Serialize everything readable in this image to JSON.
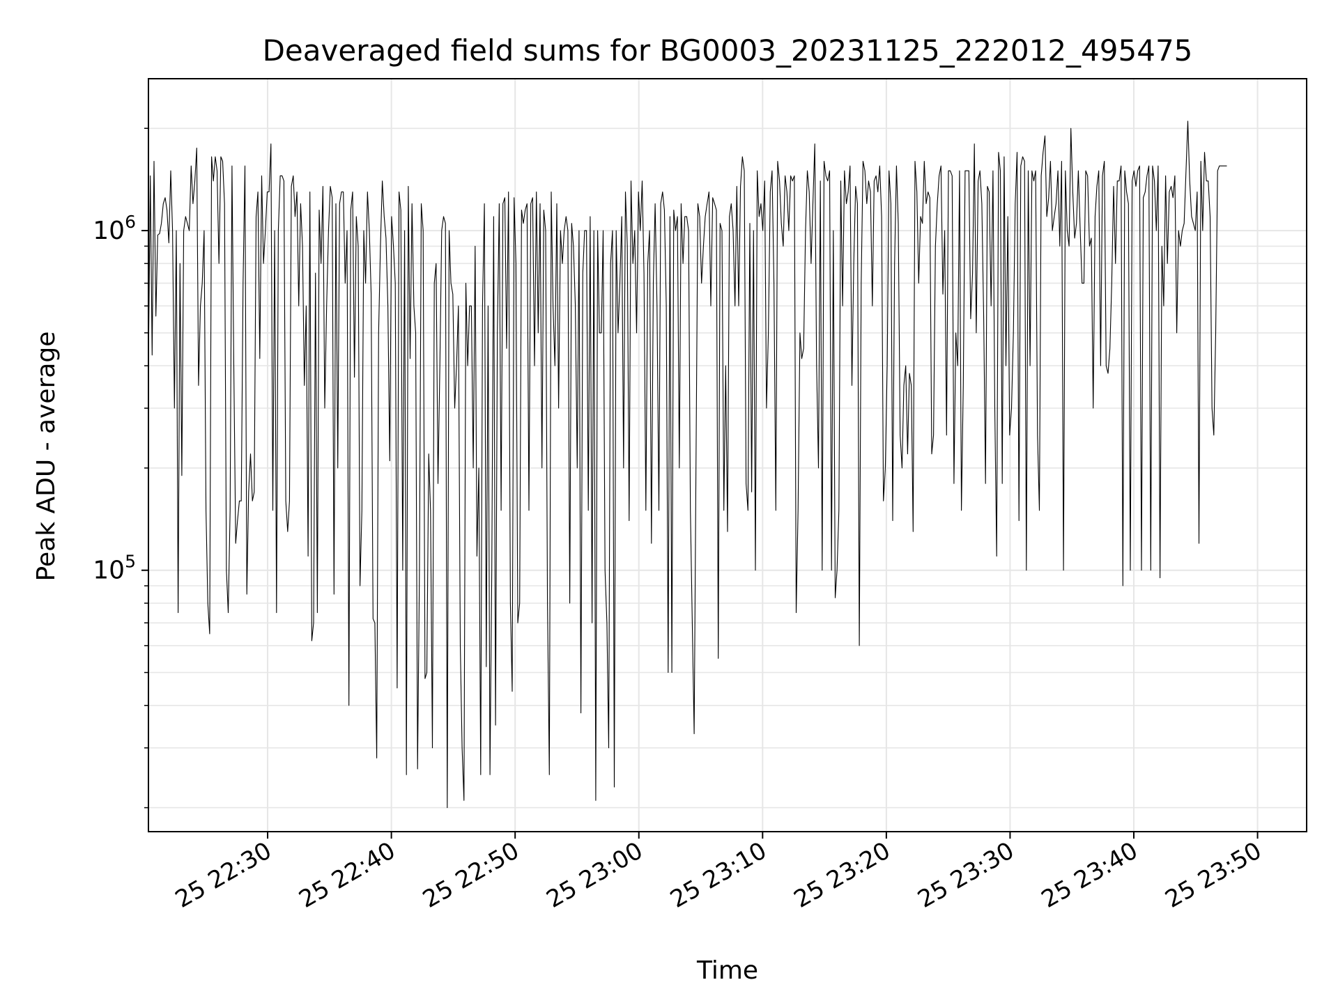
{
  "chart_data": {
    "type": "line",
    "title": "Deaveraged field sums for BG0003_20231125_222012_495475",
    "xlabel": "Time",
    "ylabel": "Peak ADU - average",
    "yscale": "log",
    "ylim": [
      17000,
      2800000
    ],
    "xlim": [
      "2023-11-25 22:20:22",
      "2023-11-25 23:53:58"
    ],
    "grid": true,
    "x_ticks": [
      "25 22:30",
      "25 22:40",
      "25 22:50",
      "25 23:00",
      "25 23:10",
      "25 23:20",
      "25 23:30",
      "25 23:40",
      "25 23:50"
    ],
    "y_ticks": [
      {
        "base": "10",
        "exp": "5",
        "value": 100000
      },
      {
        "base": "10",
        "exp": "6",
        "value": 1000000
      }
    ],
    "line_color": "#000000",
    "series": [
      {
        "x_start": "2023-11-25 22:20:22",
        "x_step_seconds": 9,
        "values": [
          400000,
          1450000,
          430000,
          1600000,
          560000,
          970000,
          980000,
          1050000,
          1200000,
          1250000,
          1150000,
          920000,
          1500000,
          1000000,
          300000,
          1000000,
          75000,
          800000,
          190000,
          1000000,
          1100000,
          1050000,
          1000000,
          1550000,
          1200000,
          1400000,
          1750000,
          350000,
          600000,
          700000,
          1000000,
          150000,
          80000,
          65000,
          1650000,
          1400000,
          1650000,
          1500000,
          800000,
          1650000,
          1600000,
          1200000,
          100000,
          75000,
          150000,
          1550000,
          400000,
          120000,
          140000,
          160000,
          160000,
          700000,
          1550000,
          85000,
          170000,
          220000,
          160000,
          170000,
          1100000,
          1300000,
          420000,
          1450000,
          800000,
          1000000,
          1300000,
          1300000,
          1800000,
          150000,
          1000000,
          75000,
          1000000,
          1450000,
          1450000,
          1400000,
          160000,
          130000,
          160000,
          1350000,
          1450000,
          1100000,
          1300000,
          600000,
          1200000,
          900000,
          350000,
          600000,
          110000,
          1300000,
          62000,
          70000,
          750000,
          75000,
          1150000,
          800000,
          1350000,
          300000,
          600000,
          1000000,
          1350000,
          1250000,
          85000,
          1200000,
          200000,
          1200000,
          1300000,
          1300000,
          700000,
          1000000,
          40000,
          1150000,
          1300000,
          370000,
          1100000,
          900000,
          90000,
          150000,
          1000000,
          700000,
          1300000,
          1000000,
          650000,
          72000,
          70000,
          28000,
          500000,
          900000,
          1400000,
          1100000,
          950000,
          600000,
          210000,
          1100000,
          900000,
          700000,
          45000,
          1300000,
          1150000,
          100000,
          1000000,
          25000,
          1350000,
          420000,
          1200000,
          600000,
          500000,
          26000,
          100000,
          1200000,
          1000000,
          48000,
          50000,
          220000,
          150000,
          30000,
          700000,
          800000,
          180000,
          400000,
          1000000,
          1100000,
          1050000,
          20000,
          1000000,
          700000,
          650000,
          300000,
          400000,
          600000,
          60000,
          30000,
          21000,
          700000,
          400000,
          600000,
          600000,
          200000,
          900000,
          110000,
          200000,
          25000,
          600000,
          1200000,
          52000,
          600000,
          25000,
          100000,
          1100000,
          35000,
          500000,
          1200000,
          150000,
          1200000,
          1250000,
          450000,
          1300000,
          80000,
          44000,
          1250000,
          800000,
          70000,
          80000,
          1150000,
          1050000,
          1150000,
          1200000,
          150000,
          1200000,
          1250000,
          400000,
          1300000,
          500000,
          1200000,
          200000,
          1150000,
          1000000,
          80000,
          25000,
          1300000,
          600000,
          400000,
          1200000,
          300000,
          1000000,
          800000,
          1000000,
          1100000,
          1000000,
          80000,
          1050000,
          900000,
          600000,
          200000,
          1000000,
          38000,
          750000,
          1000000,
          1000000,
          150000,
          1100000,
          70000,
          1000000,
          21000,
          1000000,
          500000,
          500000,
          1000000,
          100000,
          70000,
          30000,
          800000,
          1000000,
          23000,
          1000000,
          500000,
          700000,
          1100000,
          200000,
          1300000,
          900000,
          140000,
          1400000,
          800000,
          1000000,
          500000,
          1300000,
          1000000,
          1400000,
          750000,
          150000,
          800000,
          1000000,
          120000,
          700000,
          1200000,
          600000,
          150000,
          1200000,
          1300000,
          1150000,
          600000,
          50000,
          1100000,
          50000,
          1150000,
          1000000,
          1100000,
          200000,
          1200000,
          800000,
          1100000,
          1100000,
          1000000,
          150000,
          70000,
          33000,
          200000,
          1200000,
          1100000,
          700000,
          900000,
          1100000,
          1200000,
          1300000,
          600000,
          1250000,
          1200000,
          1150000,
          55000,
          1050000,
          1000000,
          150000,
          400000,
          130000,
          1100000,
          1200000,
          1000000,
          600000,
          1350000,
          600000,
          1350000,
          1650000,
          1500000,
          180000,
          150000,
          1050000,
          170000,
          1000000,
          100000,
          1500000,
          1100000,
          1200000,
          1000000,
          1400000,
          300000,
          500000,
          1300000,
          1500000,
          700000,
          150000,
          1600000,
          1400000,
          1050000,
          900000,
          1450000,
          1300000,
          1000000,
          1450000,
          1400000,
          1450000,
          75000,
          150000,
          500000,
          420000,
          450000,
          1000000,
          1500000,
          1300000,
          800000,
          1200000,
          1800000,
          400000,
          200000,
          1400000,
          100000,
          1600000,
          1450000,
          1400000,
          1500000,
          100000,
          1000000,
          83000,
          100000,
          150000,
          1400000,
          600000,
          1500000,
          1200000,
          1300000,
          1550000,
          350000,
          800000,
          1350000,
          1200000,
          60000,
          700000,
          1600000,
          1500000,
          1200000,
          1400000,
          1300000,
          600000,
          1400000,
          1450000,
          1300000,
          1550000,
          1100000,
          160000,
          200000,
          400000,
          1500000,
          1200000,
          140000,
          800000,
          1550000,
          1050000,
          250000,
          200000,
          350000,
          400000,
          220000,
          380000,
          350000,
          130000,
          1600000,
          1300000,
          700000,
          1100000,
          1050000,
          1600000,
          1200000,
          1300000,
          1250000,
          220000,
          250000,
          900000,
          1200000,
          1450000,
          1550000,
          650000,
          1000000,
          250000,
          1500000,
          1500000,
          1450000,
          180000,
          500000,
          400000,
          1500000,
          150000,
          350000,
          1500000,
          1500000,
          1500000,
          550000,
          750000,
          1800000,
          500000,
          1400000,
          1500000,
          1200000,
          550000,
          180000,
          1350000,
          1300000,
          600000,
          1500000,
          300000,
          110000,
          1700000,
          1500000,
          180000,
          1650000,
          400000,
          1100000,
          250000,
          300000,
          500000,
          1200000,
          1700000,
          140000,
          1550000,
          1650000,
          1600000,
          100000,
          1500000,
          400000,
          1500000,
          1400000,
          1500000,
          250000,
          150000,
          1450000,
          1700000,
          1900000,
          1100000,
          1250000,
          1600000,
          1000000,
          1100000,
          1200000,
          1500000,
          900000,
          1600000,
          100000,
          1500000,
          1000000,
          900000,
          2000000,
          1300000,
          950000,
          1050000,
          1500000,
          1000000,
          700000,
          700000,
          1500000,
          1450000,
          900000,
          950000,
          300000,
          1100000,
          1350000,
          1500000,
          400000,
          1450000,
          1600000,
          400000,
          380000,
          450000,
          700000,
          1350000,
          800000,
          1400000,
          1400000,
          1550000,
          90000,
          1500000,
          1300000,
          1200000,
          100000,
          1400000,
          1500000,
          1350000,
          1500000,
          1550000,
          100000,
          1250000,
          1300000,
          1450000,
          1550000,
          100000,
          1550000,
          1400000,
          1000000,
          1550000,
          95000,
          900000,
          600000,
          1450000,
          800000,
          1300000,
          1350000,
          1250000,
          1450000,
          500000,
          1000000,
          900000,
          1000000,
          1050000,
          1500000,
          2100000,
          1400000,
          1100000,
          1050000,
          1000000,
          1300000,
          120000,
          1600000,
          1000000,
          1700000,
          1400000,
          1400000,
          1100000,
          300000,
          250000,
          500000,
          1500000,
          1550000,
          1550000,
          1550000,
          1550000,
          1550000
        ]
      }
    ]
  }
}
